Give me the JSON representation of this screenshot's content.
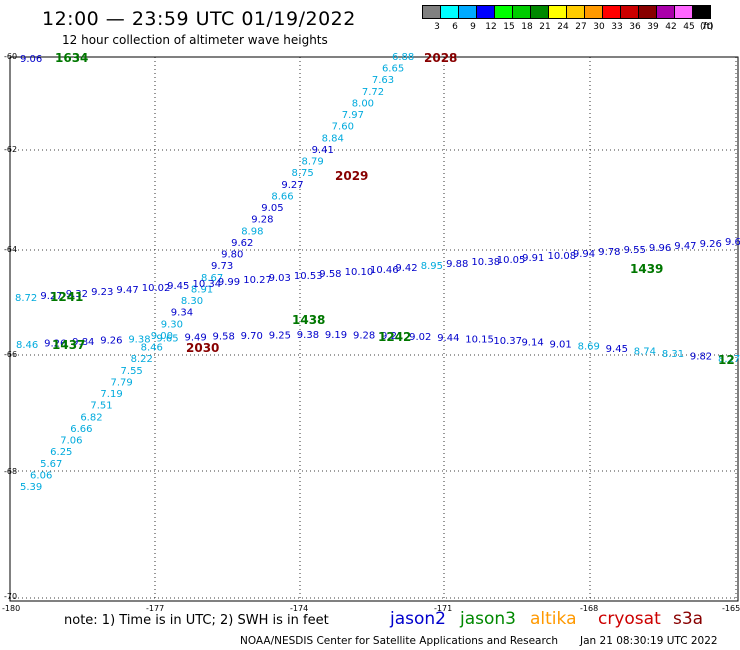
{
  "header": {
    "title": "12:00 — 23:59 UTC 01/19/2022",
    "subtitle": "12 hour collection of altimeter wave heights"
  },
  "color_scale": {
    "unit": "(ft)",
    "bins": [
      {
        "label": "3",
        "color": "#808080"
      },
      {
        "label": "6",
        "color": "#00ffff"
      },
      {
        "label": "9",
        "color": "#00aaff"
      },
      {
        "label": "12",
        "color": "#0000ff"
      },
      {
        "label": "15",
        "color": "#00ff00"
      },
      {
        "label": "18",
        "color": "#00cc00"
      },
      {
        "label": "21",
        "color": "#008800"
      },
      {
        "label": "24",
        "color": "#ffff00"
      },
      {
        "label": "27",
        "color": "#ffcc00"
      },
      {
        "label": "30",
        "color": "#ff9900"
      },
      {
        "label": "33",
        "color": "#ff0000"
      },
      {
        "label": "36",
        "color": "#cc0000"
      },
      {
        "label": "39",
        "color": "#880000"
      },
      {
        "label": "42",
        "color": "#aa00aa"
      },
      {
        "label": "45",
        "color": "#ff66ff"
      },
      {
        "label": "70",
        "color": "#000000"
      }
    ]
  },
  "axes": {
    "lat_labels": [
      "-60",
      "-62",
      "-64",
      "-66",
      "-68",
      "-70"
    ],
    "lon_labels": [
      "-180",
      "-177",
      "-174",
      "-171",
      "-168",
      "-165"
    ]
  },
  "track_colors": {
    "light": "#00aadd",
    "dark": "#0000cc",
    "green": "#007700",
    "brown": "#880000"
  },
  "tracks": {
    "diagonal": [
      "5.39",
      "6.06",
      "5.67",
      "6.25",
      "7.06",
      "6.66",
      "6.82",
      "7.51",
      "7.19",
      "7.79",
      "7.55",
      "8.22",
      "8.46",
      "9.00",
      "9.30",
      "9.34",
      "8.30",
      "8.91",
      "8.67",
      "9.73",
      "9.80",
      "9.62",
      "8.98",
      "9.28",
      "9.05",
      "8.66",
      "9.27",
      "8.75",
      "8.79",
      "9.41",
      "8.84",
      "7.60",
      "7.97",
      "8.00",
      "7.72",
      "7.63",
      "6.65",
      "6.88"
    ],
    "diagonal_color": [
      "light",
      "light",
      "light",
      "light",
      "light",
      "light",
      "light",
      "light",
      "light",
      "light",
      "light",
      "light",
      "light",
      "light",
      "light",
      "dark",
      "light",
      "light",
      "light",
      "dark",
      "dark",
      "dark",
      "light",
      "dark",
      "dark",
      "light",
      "dark",
      "light",
      "light",
      "dark",
      "light",
      "light",
      "light",
      "light",
      "light",
      "light",
      "light",
      "light"
    ],
    "upper": [
      "8.72",
      "9.27",
      "9.32",
      "9.23",
      "9.47",
      "10.02",
      "9.45",
      "10.34",
      "9.99",
      "10.27",
      "9.03",
      "10.53",
      "9.58",
      "10.10",
      "10.46",
      "9.42",
      "8.95",
      "9.88",
      "10.38",
      "10.05",
      "9.91",
      "10.08",
      "9.94",
      "9.78",
      "9.55",
      "9.96",
      "9.47",
      "9.26",
      "9.6"
    ],
    "upper_color": [
      "light",
      "dark",
      "dark",
      "dark",
      "dark",
      "dark",
      "dark",
      "dark",
      "dark",
      "dark",
      "dark",
      "dark",
      "dark",
      "dark",
      "dark",
      "dark",
      "light",
      "dark",
      "dark",
      "dark",
      "dark",
      "dark",
      "dark",
      "dark",
      "dark",
      "dark",
      "dark",
      "dark",
      "dark"
    ],
    "middle": [
      "8.46",
      "9.26",
      "9.84",
      "9.26",
      "9.38",
      "9.65",
      "9.49",
      "9.58",
      "9.70",
      "9.25",
      "9.38",
      "9.19",
      "9.28",
      "9.21",
      "9.02",
      "9.44",
      "10.15",
      "10.37",
      "9.14",
      "9.01",
      "8.69",
      "9.45",
      "8.74",
      "8.31",
      "9.82",
      "8.27"
    ],
    "middle_color": [
      "light",
      "dark",
      "dark",
      "dark",
      "light",
      "light",
      "dark",
      "dark",
      "dark",
      "dark",
      "dark",
      "dark",
      "dark",
      "dark",
      "dark",
      "dark",
      "dark",
      "dark",
      "dark",
      "dark",
      "light",
      "dark",
      "light",
      "light",
      "dark",
      "light"
    ],
    "time_labels": [
      {
        "text": "1634",
        "color": "green"
      },
      {
        "text": "2028",
        "color": "brown"
      },
      {
        "text": "2029",
        "color": "brown"
      },
      {
        "text": "1439",
        "color": "green"
      },
      {
        "text": "1241",
        "color": "green"
      },
      {
        "text": "1437",
        "color": "green"
      },
      {
        "text": "1438",
        "color": "green"
      },
      {
        "text": "1242",
        "color": "green"
      },
      {
        "text": "2030",
        "color": "brown"
      },
      {
        "text": "12",
        "color": "green"
      },
      {
        "text": "9.06",
        "color": "dark"
      }
    ]
  },
  "footer": {
    "note": "note:  1) Time is in UTC; 2) SWH is in feet",
    "satellites": [
      {
        "name": "jason2",
        "color": "#0000cc"
      },
      {
        "name": "jason3",
        "color": "#008800"
      },
      {
        "name": "altika",
        "color": "#ff9900"
      },
      {
        "name": "cryosat",
        "color": "#cc0000"
      },
      {
        "name": "s3a",
        "color": "#880000"
      }
    ],
    "credit": "NOAA/NESDIS Center for Satellite Applications and Research",
    "timestamp": "Jan 21 08:30:19 UTC 2022"
  }
}
